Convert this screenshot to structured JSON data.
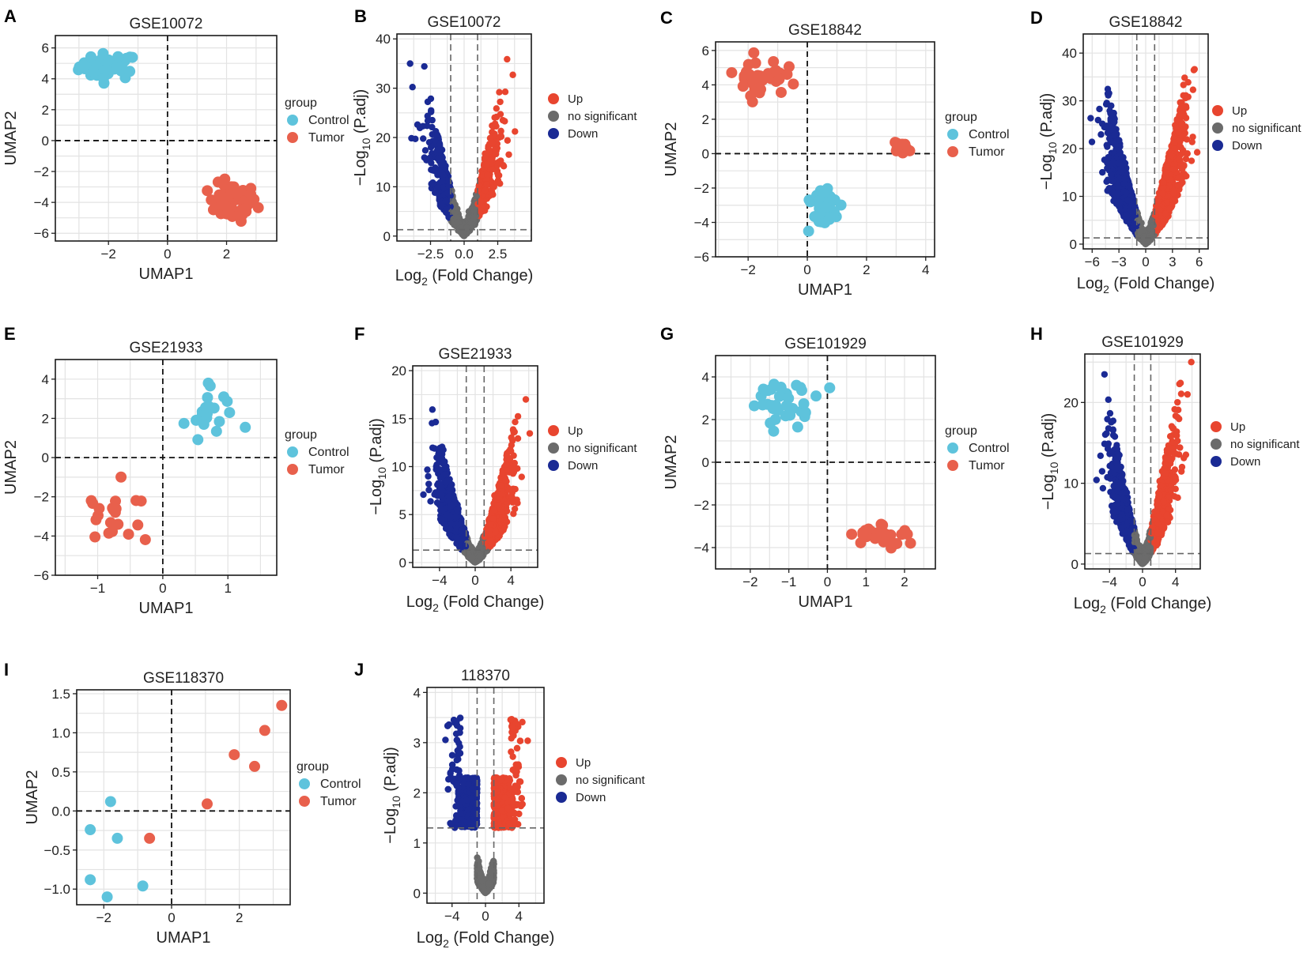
{
  "figure": {
    "legend_group_title": "group",
    "umap_legend": [
      "Control",
      "Tumor"
    ],
    "volcano_legend": [
      "Up",
      "no significant",
      "Down"
    ],
    "colors": {
      "control": "#5ec3dc",
      "tumor": "#e8604c",
      "up": "#e8452f",
      "ns": "#6b6b6b",
      "down": "#1a2a94",
      "grid": "#e3e3e3"
    }
  },
  "chart_data": [
    {
      "panel": "A",
      "type": "scatter",
      "title": "GSE10072",
      "xlabel": "UMAP1",
      "ylabel": "UMAP2",
      "xlim": [
        -3.8,
        3.7
      ],
      "ylim": [
        -6.5,
        6.8
      ],
      "xticks": [
        -2,
        0,
        2
      ],
      "yticks": [
        -6,
        -4,
        -2,
        0,
        2,
        4,
        6
      ],
      "xtick_labels": [
        "−2",
        "0",
        "2"
      ],
      "ytick_labels": [
        "−6",
        "−4",
        "−2",
        "0",
        "2",
        "4",
        "6"
      ],
      "clusters": [
        {
          "group": "Control",
          "cx": -2.0,
          "cy": 4.8,
          "sx": 0.9,
          "sy": 0.75,
          "n": 45
        },
        {
          "group": "Tumor",
          "cx": 2.2,
          "cy": -4.0,
          "sx": 0.75,
          "sy": 1.1,
          "n": 55
        }
      ]
    },
    {
      "panel": "B",
      "type": "volcano",
      "title": "GSE10072",
      "xlabel_main": "Log",
      "xlabel_sub": "2",
      "xlabel_tail": " (Fold Change)",
      "ylabel_main": "−Log",
      "ylabel_sub": "10",
      "ylabel_tail": " (P.adj)",
      "xlim": [
        -5.0,
        5.0
      ],
      "ylim": [
        -1,
        41
      ],
      "xticks": [
        -2.5,
        0,
        2.5
      ],
      "yticks": [
        0,
        10,
        20,
        30,
        40
      ],
      "xtick_labels": [
        "−2.5",
        "0.0",
        "2.5"
      ],
      "ytick_labels": [
        "0",
        "10",
        "20",
        "30",
        "40"
      ],
      "fc_cut": 1,
      "p_line": 1.3,
      "max_y": 40,
      "spread": 3.5,
      "n": 1400
    },
    {
      "panel": "C",
      "type": "scatter",
      "title": "GSE18842",
      "xlabel": "UMAP1",
      "ylabel": "UMAP2",
      "xlim": [
        -3.1,
        4.3
      ],
      "ylim": [
        -6.0,
        6.5
      ],
      "xticks": [
        -2,
        0,
        2,
        4
      ],
      "yticks": [
        -6,
        -4,
        -2,
        0,
        2,
        4,
        6
      ],
      "xtick_labels": [
        "−2",
        "0",
        "2",
        "4"
      ],
      "ytick_labels": [
        "−6",
        "−4",
        "−2",
        "0",
        "2",
        "4",
        "6"
      ],
      "clusters": [
        {
          "group": "Tumor",
          "cx": -1.6,
          "cy": 4.5,
          "sx": 0.75,
          "sy": 1.0,
          "n": 45
        },
        {
          "group": "Tumor",
          "cx": 3.2,
          "cy": 0.3,
          "sx": 0.3,
          "sy": 0.3,
          "n": 15
        },
        {
          "group": "Control",
          "cx": 0.5,
          "cy": -3.0,
          "sx": 0.55,
          "sy": 1.15,
          "n": 40
        }
      ]
    },
    {
      "panel": "D",
      "type": "volcano",
      "title": "GSE18842",
      "xlabel_main": "Log",
      "xlabel_sub": "2",
      "xlabel_tail": " (Fold Change)",
      "ylabel_main": "−Log",
      "ylabel_sub": "10",
      "ylabel_tail": " (P.adj)",
      "xlim": [
        -7,
        7
      ],
      "ylim": [
        -1,
        44
      ],
      "xticks": [
        -6,
        -3,
        0,
        3,
        6
      ],
      "yticks": [
        0,
        10,
        20,
        30,
        40
      ],
      "xtick_labels": [
        "−6",
        "−3",
        "0",
        "3",
        "6"
      ],
      "ytick_labels": [
        "0",
        "10",
        "20",
        "30",
        "40"
      ],
      "fc_cut": 1,
      "p_line": 1.3,
      "max_y": 43,
      "spread": 5.5,
      "n": 3000
    },
    {
      "panel": "E",
      "type": "scatter",
      "title": "GSE21933",
      "xlabel": "UMAP1",
      "ylabel": "UMAP2",
      "xlim": [
        -1.65,
        1.75
      ],
      "ylim": [
        -6.0,
        5.0
      ],
      "xticks": [
        -1,
        0,
        1
      ],
      "yticks": [
        -6,
        -4,
        -2,
        0,
        2,
        4
      ],
      "xtick_labels": [
        "−1",
        "0",
        "1"
      ],
      "ytick_labels": [
        "−6",
        "−4",
        "−2",
        "0",
        "2",
        "4"
      ],
      "clusters": [
        {
          "group": "Control",
          "cx": 0.75,
          "cy": 2.3,
          "sx": 0.45,
          "sy": 1.2,
          "n": 21
        },
        {
          "group": "Tumor",
          "cx": -0.75,
          "cy": -2.8,
          "sx": 0.45,
          "sy": 1.4,
          "n": 21
        }
      ]
    },
    {
      "panel": "F",
      "type": "volcano",
      "title": "GSE21933",
      "xlabel_main": "Log",
      "xlabel_sub": "2",
      "xlabel_tail": " (Fold Change)",
      "ylabel_main": "−Log",
      "ylabel_sub": "10",
      "ylabel_tail": " (P.adj)",
      "xlim": [
        -7,
        7
      ],
      "ylim": [
        -0.5,
        20.5
      ],
      "xticks": [
        -4,
        0,
        4
      ],
      "yticks": [
        0,
        5,
        10,
        15,
        20
      ],
      "xtick_labels": [
        "−4",
        "0",
        "4"
      ],
      "ytick_labels": [
        "0",
        "5",
        "10",
        "15",
        "20"
      ],
      "fc_cut": 1,
      "p_line": 1.3,
      "max_y": 17,
      "spread": 5.2,
      "n": 2600
    },
    {
      "panel": "G",
      "type": "scatter",
      "title": "GSE101929",
      "xlabel": "UMAP1",
      "ylabel": "UMAP2",
      "xlim": [
        -2.9,
        2.8
      ],
      "ylim": [
        -5.0,
        5.0
      ],
      "xticks": [
        -2,
        -1,
        0,
        1,
        2
      ],
      "yticks": [
        -4,
        -2,
        0,
        2,
        4
      ],
      "xtick_labels": [
        "−2",
        "−1",
        "0",
        "1",
        "2"
      ],
      "ytick_labels": [
        "−4",
        "−2",
        "0",
        "2",
        "4"
      ],
      "clusters": [
        {
          "group": "Control",
          "cx": -1.1,
          "cy": 2.8,
          "sx": 0.85,
          "sy": 0.9,
          "n": 34
        },
        {
          "group": "Tumor",
          "cx": 1.4,
          "cy": -3.4,
          "sx": 0.65,
          "sy": 0.45,
          "n": 34
        }
      ]
    },
    {
      "panel": "H",
      "type": "volcano",
      "title": "GSE101929",
      "xlabel_main": "Log",
      "xlabel_sub": "2",
      "xlabel_tail": " (Fold Change)",
      "ylabel_main": "−Log",
      "ylabel_sub": "10",
      "ylabel_tail": " (P.adj)",
      "xlim": [
        -7,
        7
      ],
      "ylim": [
        -0.6,
        26
      ],
      "xticks": [
        -4,
        0,
        4
      ],
      "yticks": [
        0,
        10,
        20
      ],
      "xtick_labels": [
        "−4",
        "0",
        "4"
      ],
      "ytick_labels": [
        "0",
        "10",
        "20"
      ],
      "fc_cut": 1,
      "p_line": 1.3,
      "max_y": 25,
      "spread": 5.0,
      "n": 2600
    },
    {
      "panel": "I",
      "type": "scatter",
      "title": "GSE118370",
      "xlabel": "UMAP1",
      "ylabel": "UMAP2",
      "xlim": [
        -2.8,
        3.5
      ],
      "ylim": [
        -1.2,
        1.55
      ],
      "xticks": [
        -2,
        0,
        2
      ],
      "yticks": [
        -1.0,
        -0.5,
        0.0,
        0.5,
        1.0,
        1.5
      ],
      "xtick_labels": [
        "−2",
        "0",
        "2"
      ],
      "ytick_labels": [
        "−1.0",
        "−0.5",
        "0.0",
        "0.5",
        "1.0",
        "1.5"
      ],
      "points": [
        {
          "x": -1.8,
          "y": 0.12,
          "group": "Control"
        },
        {
          "x": -2.4,
          "y": -0.24,
          "group": "Control"
        },
        {
          "x": -1.6,
          "y": -0.35,
          "group": "Control"
        },
        {
          "x": -2.4,
          "y": -0.88,
          "group": "Control"
        },
        {
          "x": -1.9,
          "y": -1.1,
          "group": "Control"
        },
        {
          "x": -0.85,
          "y": -0.96,
          "group": "Control"
        },
        {
          "x": -0.65,
          "y": -0.35,
          "group": "Tumor"
        },
        {
          "x": 1.05,
          "y": 0.09,
          "group": "Tumor"
        },
        {
          "x": 1.85,
          "y": 0.72,
          "group": "Tumor"
        },
        {
          "x": 2.45,
          "y": 0.57,
          "group": "Tumor"
        },
        {
          "x": 2.75,
          "y": 1.03,
          "group": "Tumor"
        },
        {
          "x": 3.25,
          "y": 1.35,
          "group": "Tumor"
        }
      ]
    },
    {
      "panel": "J",
      "type": "volcano",
      "title": "118370",
      "xlabel_main": "Log",
      "xlabel_sub": "2",
      "xlabel_tail": " (Fold Change)",
      "ylabel_main": "−Log",
      "ylabel_sub": "10",
      "ylabel_tail": " (P.adj)",
      "xlim": [
        -7,
        7
      ],
      "ylim": [
        -0.2,
        4.1
      ],
      "xticks": [
        -4,
        0,
        4
      ],
      "yticks": [
        0,
        1,
        2,
        3,
        4
      ],
      "xtick_labels": [
        "−4",
        "0",
        "4"
      ],
      "ytick_labels": [
        "0",
        "1",
        "2",
        "3",
        "4"
      ],
      "fc_cut": 1,
      "p_line": 1.3,
      "max_y": 3.9,
      "spread": 4.8,
      "n": 2600,
      "jagged": true
    }
  ]
}
